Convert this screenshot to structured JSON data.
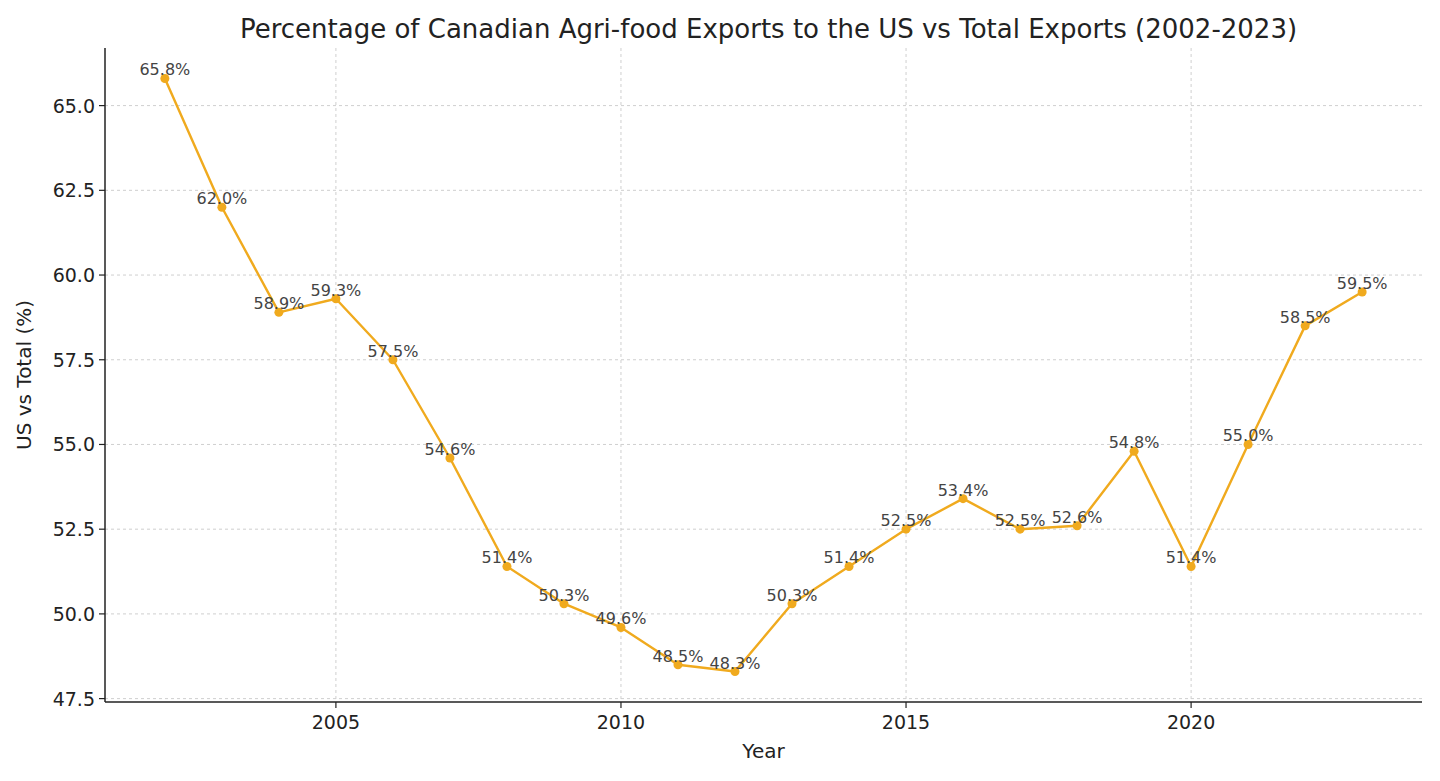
{
  "chart_data": {
    "type": "line",
    "title": "Percentage of Canadian Agri-food Exports to the US vs Total Exports (2002-2023)",
    "x_label": "Year",
    "y_label": "US vs Total (%)",
    "x": [
      2002,
      2003,
      2004,
      2005,
      2006,
      2007,
      2008,
      2009,
      2010,
      2011,
      2012,
      2013,
      2014,
      2015,
      2016,
      2017,
      2018,
      2019,
      2020,
      2021,
      2022,
      2023
    ],
    "values": [
      65.8,
      62.0,
      58.9,
      59.3,
      57.5,
      54.6,
      51.4,
      50.3,
      49.6,
      48.5,
      48.3,
      50.3,
      51.4,
      52.5,
      53.4,
      52.5,
      52.6,
      54.8,
      51.4,
      55.0,
      58.5,
      59.5
    ],
    "value_labels": [
      "65.8%",
      "62.0%",
      "58.9%",
      "59.3%",
      "57.5%",
      "54.6%",
      "51.4%",
      "50.3%",
      "49.6%",
      "48.5%",
      "48.3%",
      "50.3%",
      "51.4%",
      "52.5%",
      "53.4%",
      "52.5%",
      "52.6%",
      "54.8%",
      "51.4%",
      "55.0%",
      "58.5%",
      "59.5%"
    ],
    "color": "#f0aa1e",
    "marker": "circle",
    "line_style": "solid",
    "data_labels": true,
    "grid": true,
    "xlim": [
      2000.95,
      2024.05
    ],
    "xticks": [
      2005,
      2010,
      2015,
      2020
    ],
    "ylim": [
      47.4,
      66.7
    ],
    "yticks": [
      47.5,
      {
        "value": 50,
        "label": "50.0"
      },
      52.5,
      {
        "value": 55,
        "label": "55.0"
      },
      57.5,
      {
        "value": 60,
        "label": "60.0"
      },
      62.5,
      {
        "value": 65,
        "label": "65.0"
      }
    ]
  }
}
